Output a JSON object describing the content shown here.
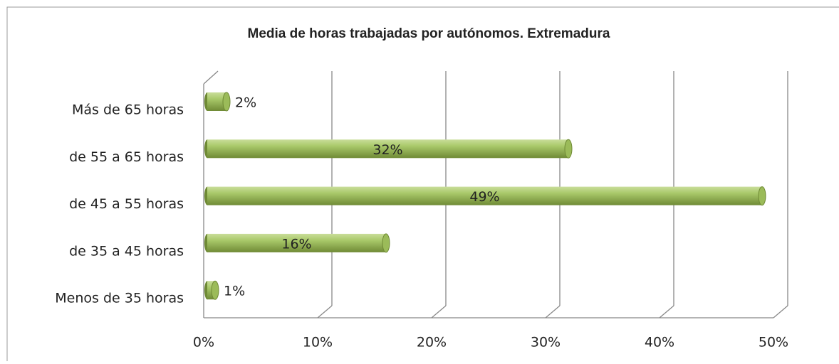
{
  "chart_data": {
    "type": "bar",
    "orientation": "horizontal",
    "title": "Media de horas trabajadas por autónomos. Extremadura",
    "categories": [
      "Más de 65 horas",
      "de 55 a 65 horas",
      "de 45 a 55 horas",
      "de 35 a 45 horas",
      "Menos de 35 horas"
    ],
    "values": [
      2,
      32,
      49,
      16,
      1
    ],
    "value_labels": [
      "2%",
      "32%",
      "49%",
      "16%",
      "1%"
    ],
    "color": "#9bbb59",
    "xlim": [
      0,
      50
    ],
    "xticks": [
      {
        "value": 0,
        "label": "0%"
      },
      {
        "value": 10,
        "label": "10%"
      },
      {
        "value": 20,
        "label": "20%"
      },
      {
        "value": 30,
        "label": "30%"
      },
      {
        "value": 40,
        "label": "40%"
      },
      {
        "value": 50,
        "label": "50%"
      }
    ],
    "grid": true
  }
}
